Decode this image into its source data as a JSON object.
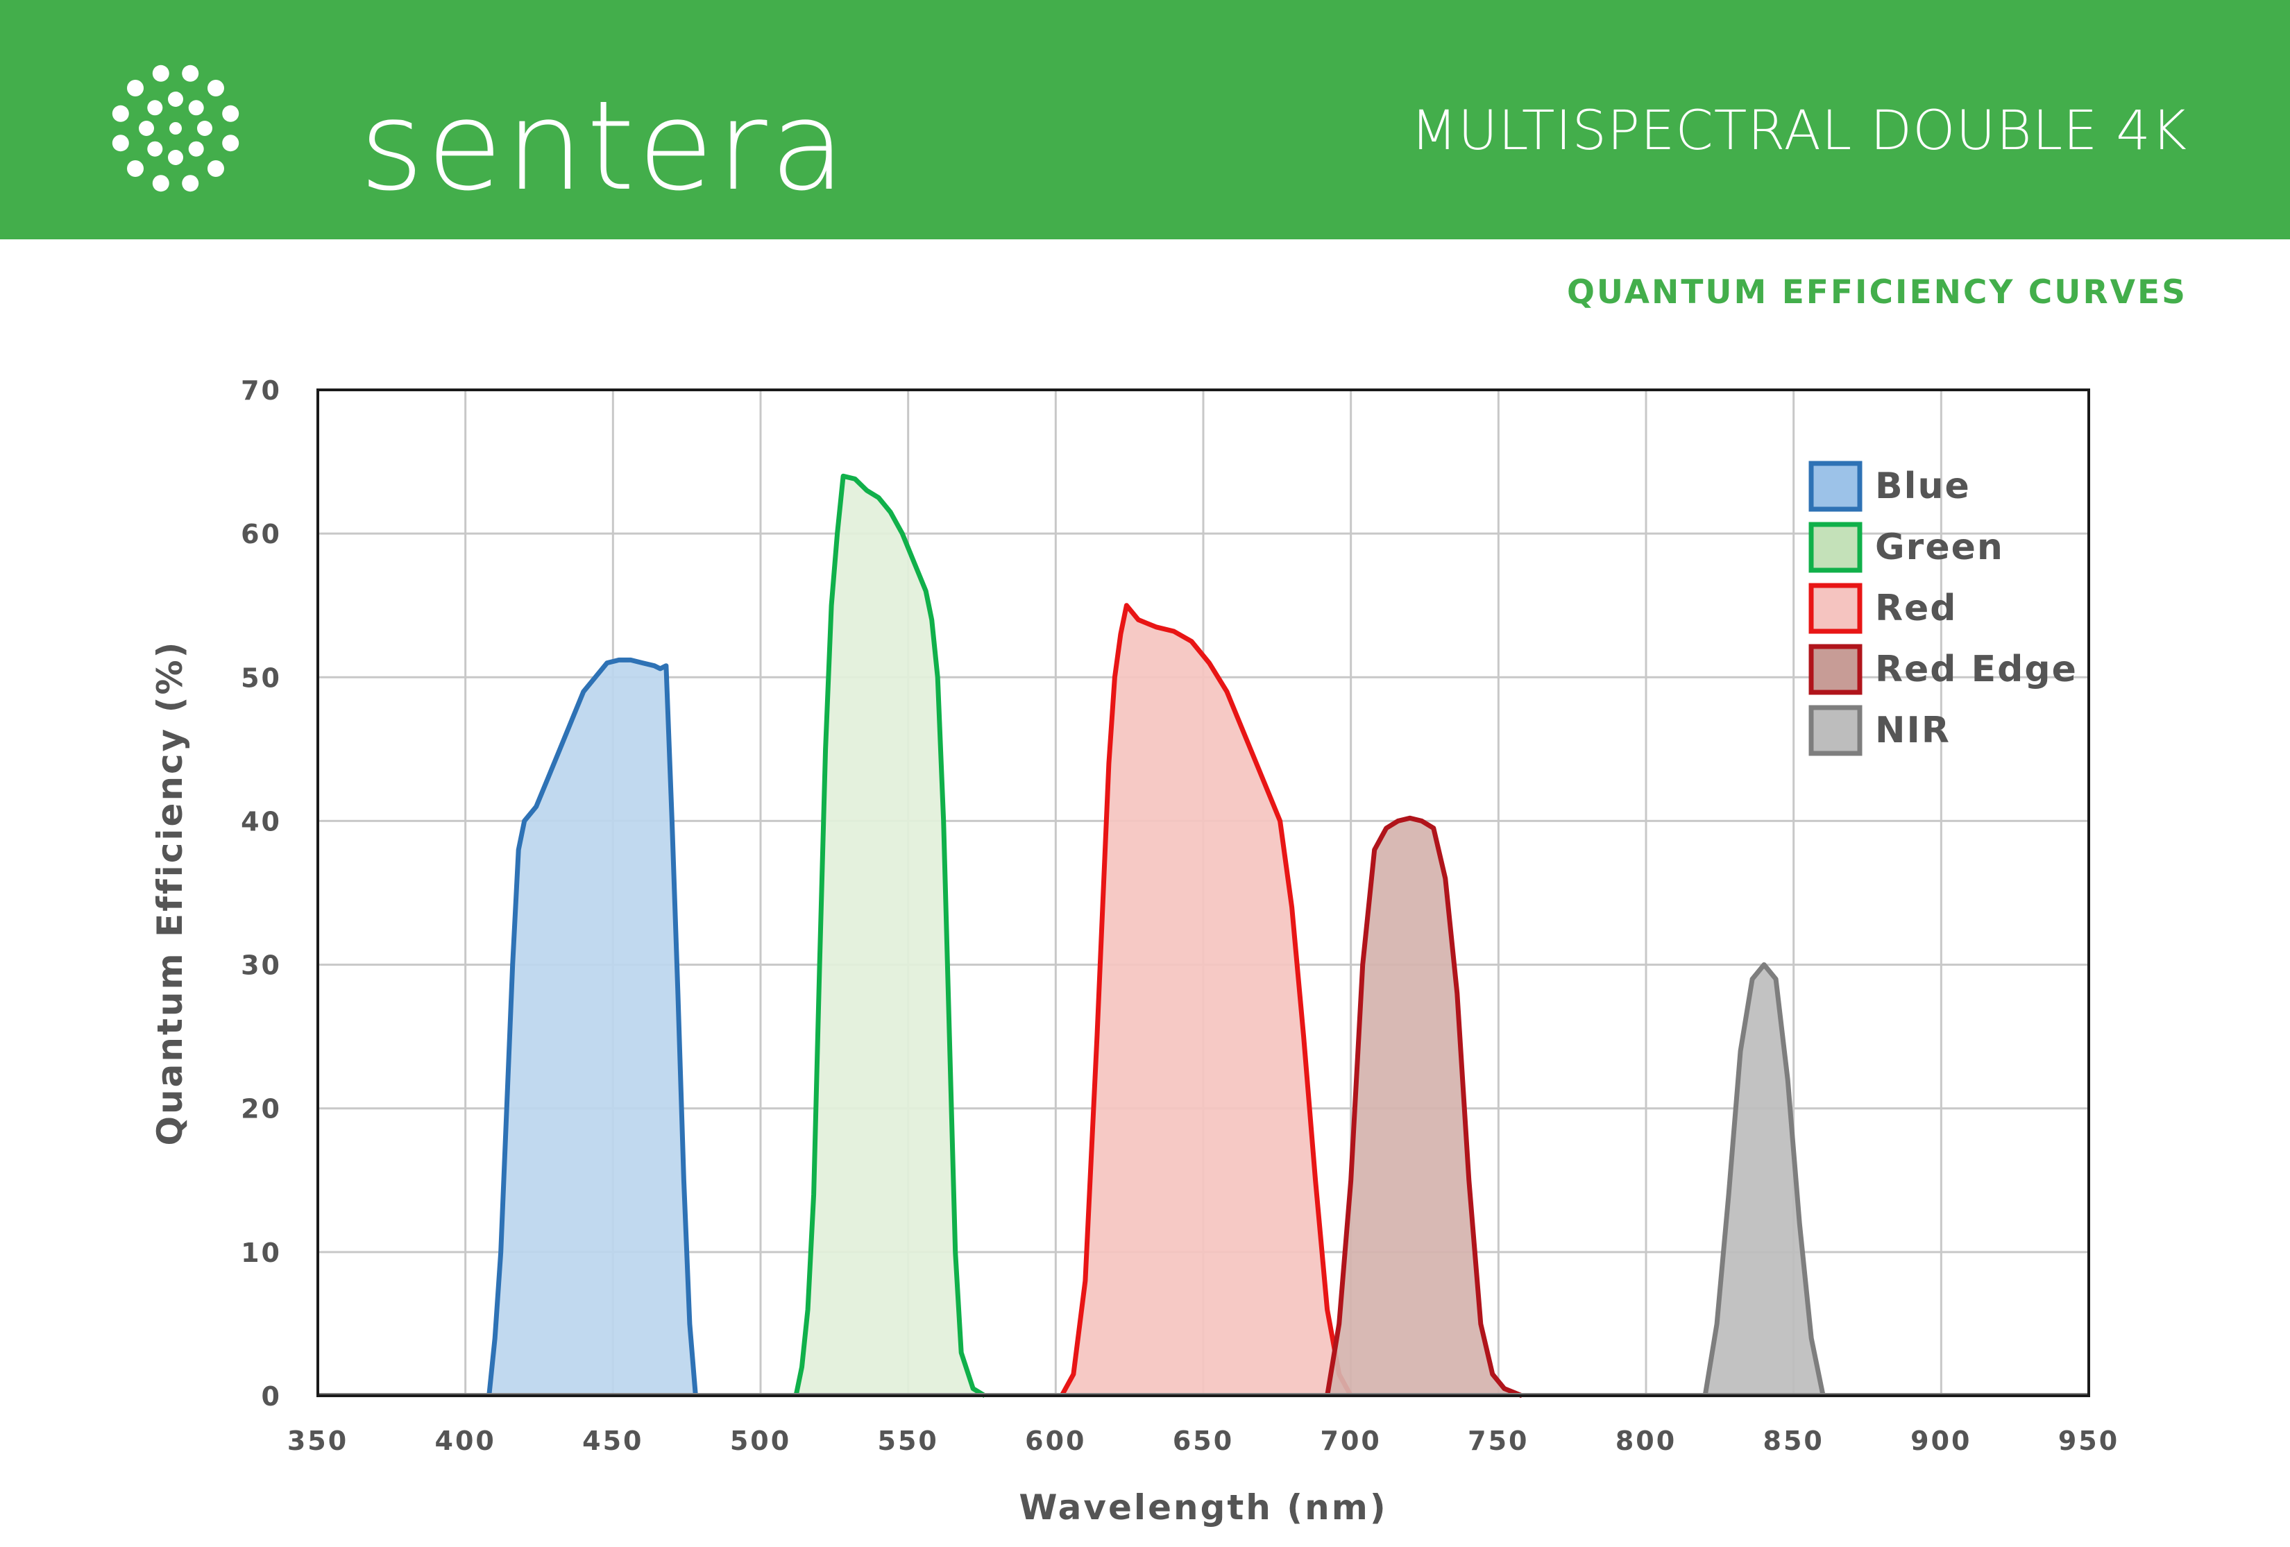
{
  "header": {
    "brand": "sentera",
    "product_title": "MULTISPECTRAL DOUBLE 4K",
    "background_color": "#43ae4b"
  },
  "subtitle": "QUANTUM EFFICIENCY CURVES",
  "chart_data": {
    "type": "area",
    "xlabel": "Wavelength (nm)",
    "ylabel": "Quantum Efficiency (%)",
    "xlim": [
      350,
      950
    ],
    "ylim": [
      0,
      70
    ],
    "xticks": [
      "350",
      "400",
      "450",
      "500",
      "550",
      "600",
      "650",
      "700",
      "750",
      "800",
      "850",
      "900",
      "950"
    ],
    "yticks": [
      "0",
      "10",
      "20",
      "30",
      "40",
      "50",
      "60",
      "70"
    ],
    "grid": true,
    "legend_position": "top-right",
    "series": [
      {
        "name": "Blue",
        "stroke": "#2e72b5",
        "fill": "#bcd6ee",
        "swatch": "#9cc2e8",
        "points": [
          [
            408,
            0
          ],
          [
            410,
            4
          ],
          [
            412,
            10
          ],
          [
            414,
            20
          ],
          [
            416,
            30
          ],
          [
            418,
            38
          ],
          [
            420,
            40
          ],
          [
            424,
            41
          ],
          [
            428,
            43
          ],
          [
            432,
            45
          ],
          [
            436,
            47
          ],
          [
            440,
            49
          ],
          [
            444,
            50
          ],
          [
            448,
            51
          ],
          [
            452,
            51.2
          ],
          [
            456,
            51.2
          ],
          [
            460,
            51
          ],
          [
            464,
            50.8
          ],
          [
            466,
            50.6
          ],
          [
            468,
            50.8
          ],
          [
            470,
            40
          ],
          [
            472,
            28
          ],
          [
            474,
            15
          ],
          [
            476,
            5
          ],
          [
            478,
            0
          ]
        ]
      },
      {
        "name": "Green",
        "stroke": "#10b04a",
        "fill": "#e2f0da",
        "swatch": "#c4e1b9",
        "points": [
          [
            512,
            0
          ],
          [
            514,
            2
          ],
          [
            516,
            6
          ],
          [
            518,
            14
          ],
          [
            520,
            30
          ],
          [
            522,
            45
          ],
          [
            524,
            55
          ],
          [
            526,
            60
          ],
          [
            528,
            64
          ],
          [
            532,
            63.8
          ],
          [
            536,
            63
          ],
          [
            540,
            62.5
          ],
          [
            544,
            61.5
          ],
          [
            548,
            60
          ],
          [
            552,
            58
          ],
          [
            556,
            56
          ],
          [
            558,
            54
          ],
          [
            560,
            50
          ],
          [
            562,
            40
          ],
          [
            564,
            25
          ],
          [
            566,
            10
          ],
          [
            568,
            3
          ],
          [
            572,
            0.5
          ],
          [
            576,
            0
          ]
        ]
      },
      {
        "name": "Red",
        "stroke": "#e81515",
        "fill": "#f5c4c0",
        "swatch": "#f5c4c0",
        "points": [
          [
            602,
            0
          ],
          [
            606,
            1.5
          ],
          [
            610,
            8
          ],
          [
            614,
            25
          ],
          [
            618,
            44
          ],
          [
            620,
            50
          ],
          [
            622,
            53
          ],
          [
            624,
            55
          ],
          [
            628,
            54
          ],
          [
            634,
            53.5
          ],
          [
            640,
            53.2
          ],
          [
            646,
            52.5
          ],
          [
            652,
            51
          ],
          [
            658,
            49
          ],
          [
            664,
            46
          ],
          [
            670,
            43
          ],
          [
            676,
            40
          ],
          [
            680,
            34
          ],
          [
            684,
            25
          ],
          [
            688,
            15
          ],
          [
            692,
            6
          ],
          [
            696,
            1.5
          ],
          [
            700,
            0
          ]
        ]
      },
      {
        "name": "Red Edge",
        "stroke": "#b0141b",
        "fill": "#d5b3ae",
        "swatch": "#c79c96",
        "points": [
          [
            692,
            0
          ],
          [
            696,
            5
          ],
          [
            700,
            15
          ],
          [
            704,
            30
          ],
          [
            708,
            38
          ],
          [
            712,
            39.5
          ],
          [
            716,
            40
          ],
          [
            720,
            40.2
          ],
          [
            724,
            40
          ],
          [
            728,
            39.5
          ],
          [
            732,
            36
          ],
          [
            736,
            28
          ],
          [
            740,
            15
          ],
          [
            744,
            5
          ],
          [
            748,
            1.5
          ],
          [
            752,
            0.5
          ],
          [
            758,
            0
          ]
        ]
      },
      {
        "name": "NIR",
        "stroke": "#7e7e7e",
        "fill": "#bdbdbd",
        "swatch": "#bdbdbd",
        "points": [
          [
            820,
            0
          ],
          [
            824,
            5
          ],
          [
            828,
            14
          ],
          [
            832,
            24
          ],
          [
            836,
            29
          ],
          [
            840,
            30
          ],
          [
            844,
            29
          ],
          [
            848,
            22
          ],
          [
            852,
            12
          ],
          [
            856,
            4
          ],
          [
            860,
            0
          ]
        ]
      }
    ]
  }
}
